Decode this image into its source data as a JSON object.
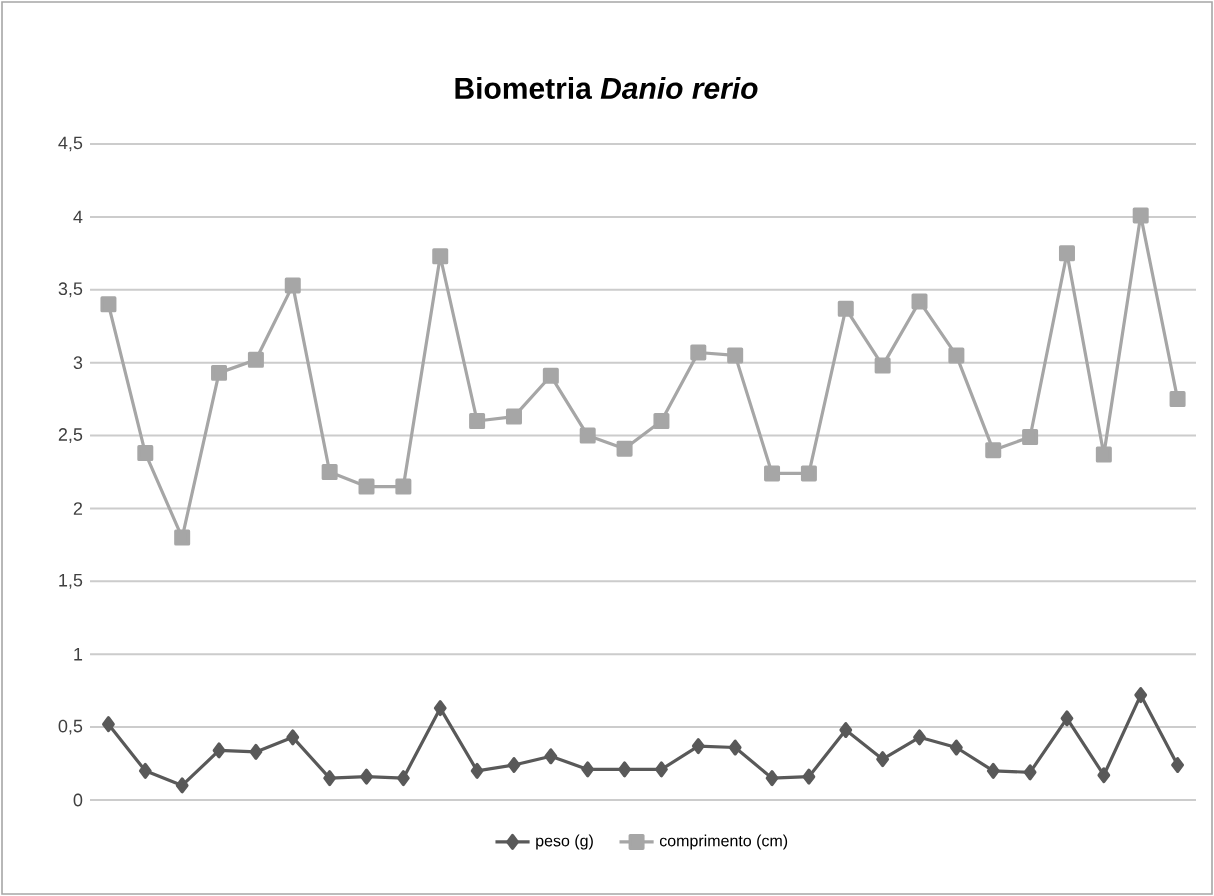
{
  "chart_data": {
    "type": "line",
    "title": "Biometria *Danio rerio*",
    "categories": [
      null,
      null,
      null,
      null,
      null,
      null,
      null,
      null,
      null,
      null,
      null,
      null,
      null,
      null,
      null,
      null,
      null,
      null,
      null,
      null,
      null,
      null,
      null,
      null,
      null,
      null,
      null,
      null,
      null,
      null
    ],
    "series": [
      {
        "name": "peso (g)",
        "color": "#595959",
        "marker": "diamond",
        "values": [
          0.52,
          0.2,
          0.1,
          0.34,
          0.33,
          0.43,
          0.15,
          0.16,
          0.15,
          0.63,
          0.2,
          0.24,
          0.3,
          0.21,
          0.21,
          0.21,
          0.37,
          0.36,
          0.15,
          0.16,
          0.48,
          0.28,
          0.43,
          0.36,
          0.2,
          0.19,
          0.56,
          0.17,
          0.72,
          0.24
        ]
      },
      {
        "name": "comprimento (cm)",
        "color": "#a6a6a6",
        "marker": "square",
        "values": [
          3.4,
          2.38,
          1.8,
          2.93,
          3.02,
          3.53,
          2.25,
          2.15,
          2.15,
          3.73,
          2.6,
          2.63,
          2.91,
          2.5,
          2.41,
          2.6,
          3.07,
          3.05,
          2.24,
          2.24,
          3.37,
          2.98,
          3.42,
          3.05,
          2.4,
          2.49,
          3.75,
          2.37,
          4.01,
          2.75
        ]
      }
    ],
    "ylim": [
      0,
      4.5
    ],
    "yticks": [
      0,
      {
        "value": 0.5,
        "label": "0,5"
      },
      1,
      {
        "value": 1.5,
        "label": "1,5"
      },
      2,
      {
        "value": 2.5,
        "label": "2,5"
      },
      3,
      {
        "value": 3.5,
        "label": "3,5"
      },
      4,
      {
        "value": 4.5,
        "label": "4,5"
      }
    ],
    "grid": "y",
    "legend": "bottom",
    "line_style": "solid"
  }
}
